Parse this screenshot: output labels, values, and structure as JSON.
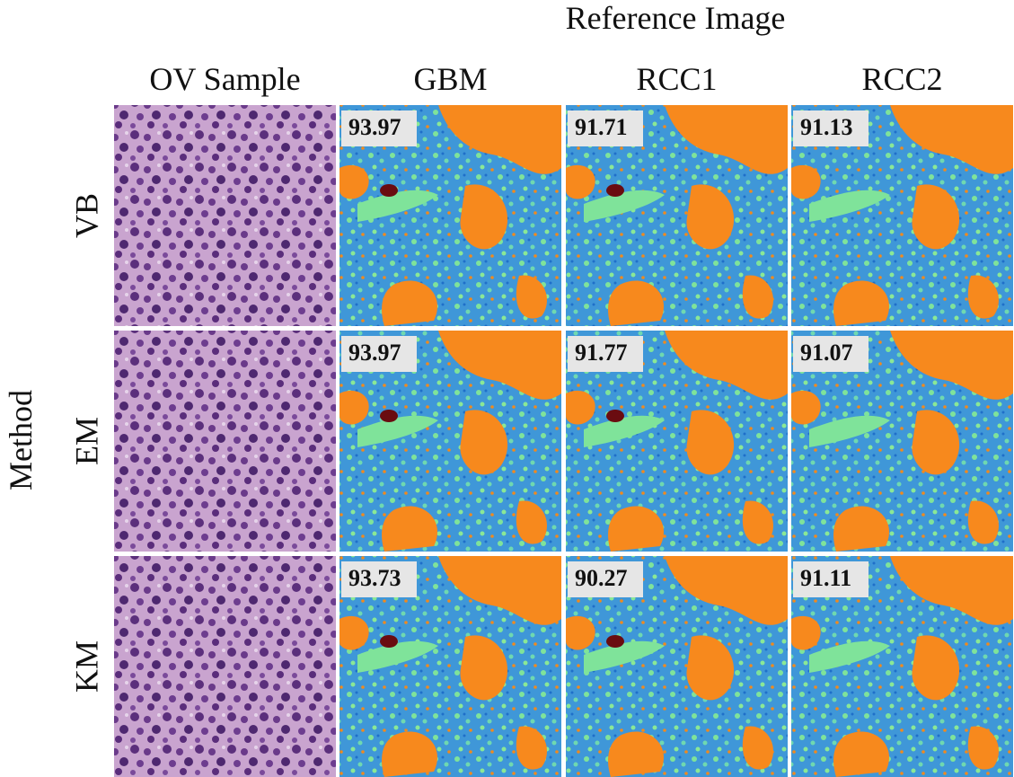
{
  "header": {
    "title": "Reference Image"
  },
  "columns": [
    "OV Sample",
    "GBM",
    "RCC1",
    "RCC2"
  ],
  "row_axis": "Method",
  "rows": [
    {
      "label": "VB",
      "scores": [
        93.97,
        91.71,
        91.13
      ]
    },
    {
      "label": "EM",
      "scores": [
        93.97,
        91.77,
        91.07
      ]
    },
    {
      "label": "KM",
      "scores": [
        93.73,
        90.27,
        91.11
      ]
    }
  ]
}
